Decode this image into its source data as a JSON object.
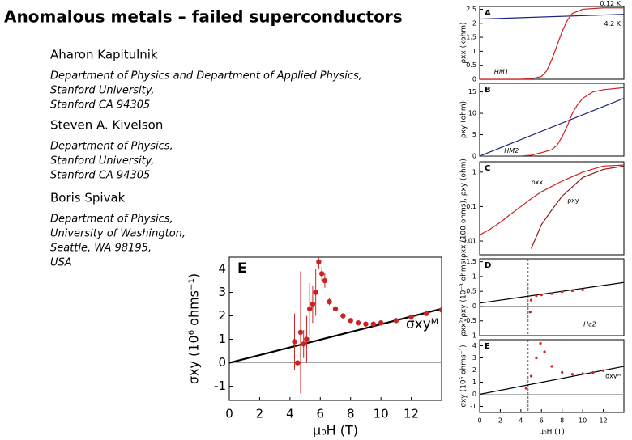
{
  "title": "Anomalous metals – failed superconductors",
  "authors": [
    {
      "name": "Aharon Kapitulnik",
      "affiliation": [
        "Department of Physics and Department of Applied Physics,",
        "Stanford University,",
        "Stanford CA 94305"
      ]
    },
    {
      "name": "Steven A. Kivelson",
      "affiliation": [
        "Department of Physics,",
        "Stanford University,",
        "Stanford CA 94305"
      ]
    },
    {
      "name": "Boris Spivak",
      "affiliation": [
        "Department of Physics,",
        "University of Washington,",
        "Seattle, WA 98195,",
        "USA"
      ]
    }
  ],
  "chart_data": [
    {
      "type": "line",
      "panel": "E",
      "xlabel": "μ₀H (T)",
      "ylabel": "σxy (10⁶ ohms⁻¹)",
      "xlim": [
        0,
        14
      ],
      "ylim": [
        -1.6,
        4.5
      ],
      "xticks": [
        0,
        2,
        4,
        6,
        8,
        10,
        12
      ],
      "yticks": [
        -1,
        0,
        1,
        2,
        3,
        4
      ],
      "zero_line": true,
      "series": [
        {
          "name": "σxyᴹ",
          "color": "#000000",
          "style": "line",
          "x": [
            0,
            14
          ],
          "values": [
            0,
            2.3
          ]
        },
        {
          "color": "#cc2222",
          "style": "points",
          "x": [
            4.3,
            4.5,
            4.7,
            4.9,
            5.1,
            5.3,
            5.5,
            5.7,
            5.9,
            6.1,
            6.3,
            6.6,
            7,
            7.5,
            8,
            8.5,
            9,
            9.5,
            10,
            11,
            12,
            13,
            14
          ],
          "values": [
            0.9,
            0,
            1.3,
            0.8,
            1.0,
            2.3,
            2.5,
            3.0,
            4.3,
            3.8,
            3.5,
            2.6,
            2.3,
            2.0,
            1.8,
            1.7,
            1.65,
            1.65,
            1.7,
            1.8,
            1.95,
            2.1,
            2.25
          ],
          "errors": [
            1.2,
            0.1,
            2.6,
            0.6,
            1.0,
            1.1,
            0.8,
            1.0,
            0.3,
            0.3,
            0.3,
            0.15,
            0.1,
            0.05,
            0.05,
            0.05,
            0.05,
            0.05,
            0.05,
            0.05,
            0.05,
            0.05,
            0.05
          ]
        }
      ]
    },
    {
      "type": "line",
      "panel": "A",
      "ylabel": "ρxx (kohm)",
      "xlim": [
        0,
        14
      ],
      "ylim": [
        0,
        2.6
      ],
      "yticks": [
        0,
        0.5,
        1,
        1.5,
        2,
        2.5
      ],
      "annotations": [
        "HM1"
      ],
      "series": [
        {
          "name": "4.2 K",
          "color": "#1a237e",
          "style": "line",
          "x": [
            0,
            14
          ],
          "values": [
            2.15,
            2.32
          ]
        },
        {
          "name": "0.12 K",
          "color": "#cc2222",
          "style": "line",
          "x": [
            0,
            2,
            4,
            5,
            6,
            6.5,
            7,
            7.5,
            8,
            8.5,
            9,
            10,
            12,
            14
          ],
          "values": [
            0,
            0,
            0,
            0.02,
            0.1,
            0.3,
            0.7,
            1.2,
            1.7,
            2.1,
            2.35,
            2.5,
            2.55,
            2.55
          ]
        }
      ]
    },
    {
      "type": "line",
      "panel": "B",
      "ylabel": "ρxy (ohm)",
      "xlim": [
        0,
        14
      ],
      "ylim": [
        0,
        17
      ],
      "yticks": [
        0,
        5,
        10,
        15
      ],
      "annotations": [
        "HM2"
      ],
      "series": [
        {
          "color": "#1a237e",
          "style": "line",
          "x": [
            0,
            14
          ],
          "values": [
            0,
            13.5
          ]
        },
        {
          "color": "#cc2222",
          "style": "line",
          "x": [
            0,
            4,
            5,
            6,
            7,
            7.5,
            8,
            8.5,
            9,
            9.5,
            10,
            11,
            12,
            14
          ],
          "values": [
            0,
            0,
            0.2,
            0.8,
            1.5,
            2.5,
            4.5,
            7,
            10,
            12,
            13.5,
            15,
            15.5,
            16
          ]
        }
      ]
    },
    {
      "type": "line",
      "panel": "C",
      "ylabel": "ρxx (100 ohms), ρxy (ohm)",
      "xlim": [
        0,
        14
      ],
      "ylim": [
        0.004,
        2
      ],
      "log_y": true,
      "yticks": [
        0.01,
        0.1,
        1
      ],
      "series": [
        {
          "name": "ρxx",
          "color": "#cc2222",
          "style": "line",
          "x": [
            0,
            1,
            2,
            3,
            4,
            5,
            6,
            8,
            10,
            12,
            14
          ],
          "values": [
            0.015,
            0.022,
            0.035,
            0.06,
            0.1,
            0.17,
            0.27,
            0.55,
            1,
            1.5,
            1.6
          ]
        },
        {
          "name": "ρxy",
          "color": "#8b1a1a",
          "style": "line",
          "x": [
            5,
            6,
            7,
            8,
            10,
            12,
            14
          ],
          "values": [
            0.006,
            0.03,
            0.08,
            0.2,
            0.7,
            1.2,
            1.5
          ]
        }
      ]
    },
    {
      "type": "line",
      "panel": "D",
      "ylabel": "ρxx²/ρxy (10⁻³ ohms)",
      "xlim": [
        0,
        14
      ],
      "ylim": [
        -1,
        1.6
      ],
      "yticks": [
        -1,
        -0.5,
        0,
        0.5,
        1,
        1.5
      ],
      "zero_line": true,
      "marker_x": 4.7,
      "annotations": [
        "Hc2"
      ],
      "series": [
        {
          "color": "#000000",
          "style": "line",
          "x": [
            0,
            14
          ],
          "values": [
            0.1,
            0.8
          ]
        },
        {
          "color": "#cc2222",
          "style": "points",
          "x": [
            4.9,
            5,
            5.5,
            6,
            7,
            8,
            9,
            10
          ],
          "values": [
            -0.2,
            0.2,
            0.35,
            0.38,
            0.42,
            0.48,
            0.52,
            0.55
          ]
        }
      ]
    },
    {
      "type": "line",
      "panel": "E",
      "xlabel": "μ₀H (T)",
      "ylabel": "σxy (10⁶ ohms⁻¹)",
      "xlim": [
        0,
        14
      ],
      "ylim": [
        -1.5,
        4.5
      ],
      "xticks": [
        0,
        2,
        4,
        6,
        8,
        10,
        12
      ],
      "yticks": [
        -1,
        0,
        1,
        2,
        3,
        4
      ],
      "zero_line": true,
      "marker_x": 4.7,
      "series": [
        {
          "name": "σxyᴹ",
          "color": "#000000",
          "style": "line",
          "x": [
            0,
            14
          ],
          "values": [
            0,
            2.3
          ]
        },
        {
          "color": "#cc2222",
          "style": "points",
          "x": [
            4.5,
            5,
            5.5,
            5.9,
            6.3,
            7,
            8,
            9,
            10,
            11,
            12
          ],
          "values": [
            0.5,
            1.5,
            3.0,
            4.2,
            3.5,
            2.3,
            1.8,
            1.65,
            1.7,
            1.8,
            1.95
          ]
        }
      ]
    }
  ]
}
